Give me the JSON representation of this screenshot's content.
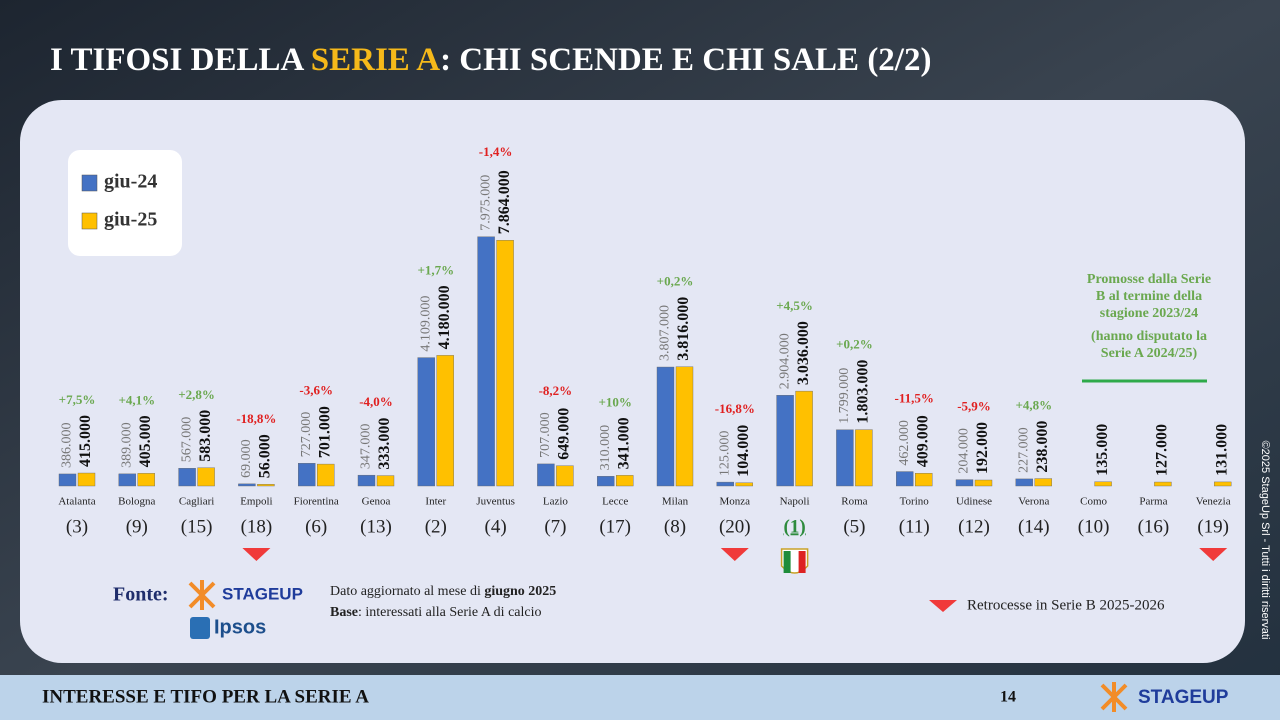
{
  "title": {
    "part1": "I TIFOSI DELLA ",
    "highlight": "SERIE A",
    "part2": ": CHI SCENDE E CHI SALE (2/2)"
  },
  "chart_data": {
    "type": "bar",
    "categories": [
      "Atalanta",
      "Bologna",
      "Cagliari",
      "Empoli",
      "Fiorentina",
      "Genoa",
      "Inter",
      "Juventus",
      "Lazio",
      "Lecce",
      "Milan",
      "Monza",
      "Napoli",
      "Roma",
      "Torino",
      "Udinese",
      "Verona",
      "Como",
      "Parma",
      "Venezia"
    ],
    "ylim": [
      0,
      8000000
    ],
    "series": [
      {
        "name": "giu-24",
        "color": "#4472c4",
        "values": [
          386000,
          389000,
          567000,
          69000,
          727000,
          347000,
          4109000,
          7975000,
          707000,
          310000,
          3807000,
          125000,
          2904000,
          1799000,
          462000,
          204000,
          227000,
          null,
          null,
          null
        ],
        "value_labels": [
          "386.000",
          "389.000",
          "567.000",
          "69.000",
          "727.000",
          "347.000",
          "4.109.000",
          "7.975.000",
          "707.000",
          "310.000",
          "3.807.000",
          "125.000",
          "2.904.000",
          "1.799.000",
          "462.000",
          "204.000",
          "227.000",
          null,
          null,
          null
        ]
      },
      {
        "name": "giu-25",
        "color": "#ffc000",
        "values": [
          415000,
          405000,
          583000,
          56000,
          701000,
          333000,
          4180000,
          7864000,
          649000,
          341000,
          3816000,
          104000,
          3036000,
          1803000,
          409000,
          192000,
          238000,
          135000,
          127000,
          131000
        ],
        "value_labels": [
          "415.000",
          "405.000",
          "583.000",
          "56.000",
          "701.000",
          "333.000",
          "4.180.000",
          "7.864.000",
          "649.000",
          "341.000",
          "3.816.000",
          "104.000",
          "3.036.000",
          "1.803.000",
          "409.000",
          "192.000",
          "238.000",
          "135.000",
          "127.000",
          "131.000"
        ]
      }
    ],
    "changes": [
      "+7,5%",
      "+4,1%",
      "+2,8%",
      "-18,8%",
      "-3,6%",
      "-4,0%",
      "+1,7%",
      "-1,4%",
      "-8,2%",
      "+10%",
      "+0,2%",
      "-16,8%",
      "+4,5%",
      "+0,2%",
      "-11,5%",
      "-5,9%",
      "+4,8%",
      null,
      null,
      null
    ],
    "ranks": [
      "(3)",
      "(9)",
      "(15)",
      "(18)",
      "(6)",
      "(13)",
      "(2)",
      "(4)",
      "(7)",
      "(17)",
      "(8)",
      "(20)",
      "(1)",
      "(5)",
      "(11)",
      "(12)",
      "(14)",
      "(10)",
      "(16)",
      "(19)"
    ],
    "relegated": [
      false,
      false,
      false,
      true,
      false,
      false,
      false,
      false,
      false,
      false,
      false,
      true,
      false,
      false,
      false,
      false,
      false,
      false,
      false,
      true
    ],
    "champion": [
      false,
      false,
      false,
      false,
      false,
      false,
      false,
      false,
      false,
      false,
      false,
      false,
      true,
      false,
      false,
      false,
      false,
      false,
      false,
      false
    ]
  },
  "note": {
    "promoted": [
      "Promosse dalla Serie",
      "B al termine della",
      "stagione 2023/24"
    ],
    "promoted_sub": [
      "(hanno disputato la",
      "Serie A 2024/25)"
    ]
  },
  "legend_relegated": "Retrocesse in Serie B 2025-2026",
  "source": {
    "label": "Fonte:",
    "logo1": "STAGEUP",
    "logo2": "Ipsos",
    "line1_a": "Dato aggiornato al mese di ",
    "line1_b": "giugno 2025",
    "line2_a": "Base",
    "line2_b": ": interessati alla Serie A di calcio"
  },
  "footer": {
    "text": "INTERESSE E TIFO PER LA SERIE A",
    "page": 14,
    "brand": "STAGEUP"
  },
  "copyright": "©2025 StageUp Srl - Tutti i diritti riservati"
}
